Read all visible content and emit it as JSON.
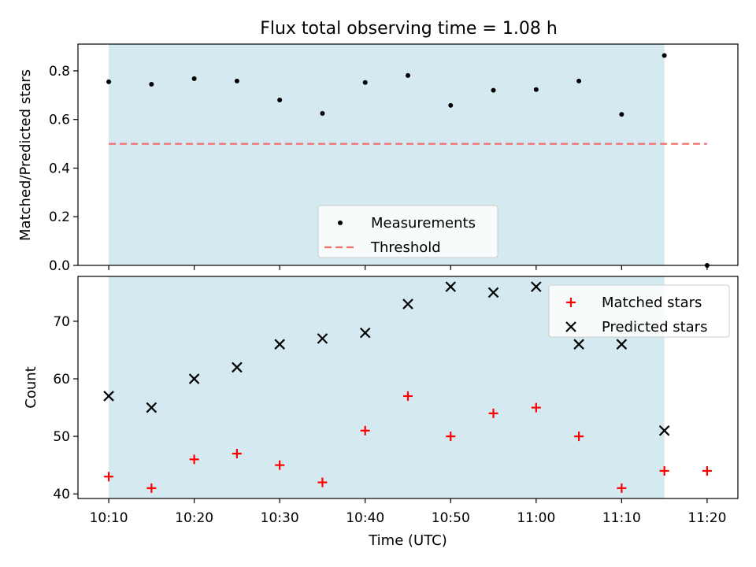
{
  "figure": {
    "title": "Flux total observing time = 1.08 h"
  },
  "chart_data": [
    {
      "type": "scatter",
      "panel": "top",
      "ylabel": "Matched/Predicted stars",
      "ylim": [
        0.0,
        0.91
      ],
      "yticks": [
        0.0,
        0.2,
        0.4,
        0.6,
        0.8
      ],
      "ytick_labels": [
        "0.0",
        "0.2",
        "0.4",
        "0.6",
        "0.8"
      ],
      "shaded_span": [
        "10:10",
        "11:15"
      ],
      "shade_color": "#d4eaf0",
      "legend_position": "lower center",
      "series": [
        {
          "name": "Measurements",
          "marker": "dot",
          "color": "#000000",
          "x": [
            "10:10",
            "10:15",
            "10:20",
            "10:25",
            "10:30",
            "10:35",
            "10:40",
            "10:45",
            "10:50",
            "10:55",
            "11:00",
            "11:05",
            "11:10",
            "11:15",
            "11:20"
          ],
          "y": [
            0.755,
            0.745,
            0.768,
            0.758,
            0.68,
            0.625,
            0.752,
            0.781,
            0.658,
            0.72,
            0.723,
            0.758,
            0.621,
            0.863,
            0.0
          ]
        },
        {
          "name": "Threshold",
          "style": "dashed-line",
          "color": "#f07070",
          "x": [
            "10:10",
            "11:20"
          ],
          "y": [
            0.5,
            0.5
          ]
        }
      ]
    },
    {
      "type": "scatter",
      "panel": "bottom",
      "xlabel": "Time (UTC)",
      "ylabel": "Count",
      "ylim": [
        39.2,
        77.8
      ],
      "yticks": [
        40,
        50,
        60,
        70
      ],
      "ytick_labels": [
        "40",
        "50",
        "60",
        "70"
      ],
      "xticks": [
        "10:10",
        "10:20",
        "10:30",
        "10:40",
        "10:50",
        "11:00",
        "11:10",
        "11:20"
      ],
      "xlim_minutes": [
        "10:06.4",
        "11:23.6"
      ],
      "shaded_span": [
        "10:10",
        "11:15"
      ],
      "shade_color": "#d4eaf0",
      "legend_position": "upper right",
      "series": [
        {
          "name": "Matched stars",
          "marker": "plus",
          "color": "#ff0000",
          "x": [
            "10:10",
            "10:15",
            "10:20",
            "10:25",
            "10:30",
            "10:35",
            "10:40",
            "10:45",
            "10:50",
            "10:55",
            "11:00",
            "11:05",
            "11:10",
            "11:15",
            "11:20"
          ],
          "y": [
            43,
            41,
            46,
            47,
            45,
            42,
            51,
            57,
            50,
            54,
            55,
            50,
            41,
            44,
            44
          ]
        },
        {
          "name": "Predicted stars",
          "marker": "x",
          "color": "#000000",
          "x": [
            "10:10",
            "10:15",
            "10:20",
            "10:25",
            "10:30",
            "10:35",
            "10:40",
            "10:45",
            "10:50",
            "10:55",
            "11:00",
            "11:05",
            "11:10",
            "11:15"
          ],
          "y": [
            57,
            55,
            60,
            62,
            66,
            67,
            68,
            73,
            76,
            75,
            76,
            66,
            66,
            51
          ]
        }
      ]
    }
  ]
}
